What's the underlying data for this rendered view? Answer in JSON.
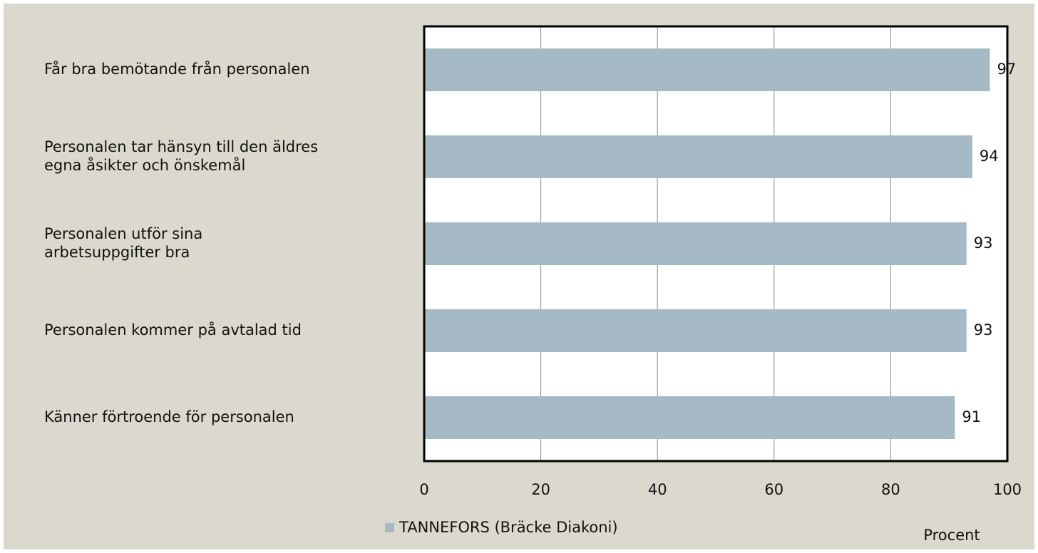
{
  "chart_data": {
    "type": "bar",
    "orientation": "horizontal",
    "categories": [
      "Får bra bemötande från personalen",
      "Personalen tar hänsyn till den äldres\negna åsikter och önskemål",
      "Personalen utför sina\narbetsuppgifter bra",
      "Personalen kommer på avtalad tid",
      "Känner förtroende för personalen"
    ],
    "series": [
      {
        "name": "TANNEFORS (Bräcke Diakoni)",
        "color": "#a6bac6",
        "values": [
          97,
          94,
          93,
          93,
          91
        ]
      }
    ],
    "xlim": [
      0,
      100
    ],
    "xticks": [
      0,
      20,
      40,
      60,
      80,
      100
    ],
    "xlabel": "Procent",
    "grid": true,
    "legend": "bottom"
  }
}
